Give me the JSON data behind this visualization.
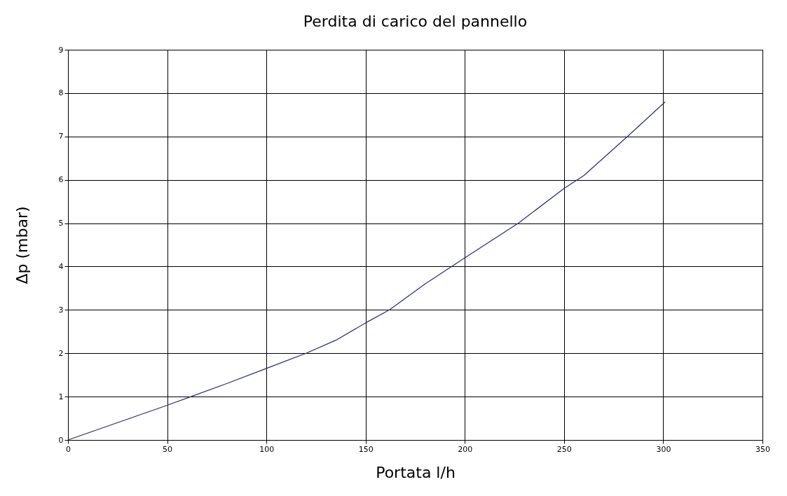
{
  "chart_data": {
    "type": "line",
    "title": "Perdita di carico del pannello",
    "xlabel": "Portata l/h",
    "ylabel": "Δp (mbar)",
    "x": [
      0,
      25,
      50,
      62,
      80,
      100,
      120,
      135,
      150,
      162,
      180,
      200,
      227,
      250,
      260,
      282,
      301
    ],
    "series": [
      {
        "color": "#2a2a7a",
        "values": [
          0,
          0.4,
          0.8,
          1.0,
          1.3,
          1.65,
          2.0,
          2.3,
          2.7,
          3.0,
          3.6,
          4.2,
          5.0,
          5.8,
          6.1,
          7.0,
          7.8
        ]
      }
    ],
    "xlim": [
      0,
      350
    ],
    "xticks": [
      0,
      50,
      100,
      150,
      200,
      250,
      300,
      350
    ],
    "ylim": [
      0,
      9
    ],
    "yticks": [
      0,
      1,
      2,
      3,
      4,
      5,
      6,
      7,
      8,
      9
    ],
    "grid": true,
    "marker": "none",
    "line_style": "solid"
  }
}
